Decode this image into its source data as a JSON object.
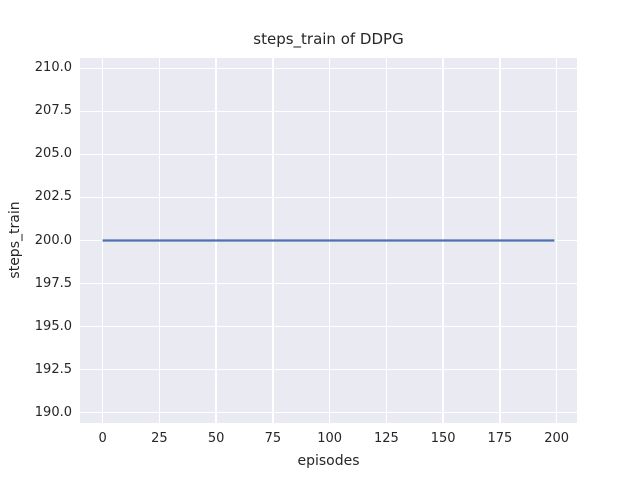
{
  "figure": {
    "title": "steps_train of DDPG",
    "xlabel": "episodes",
    "ylabel": "steps_train"
  },
  "chart_data": {
    "type": "line",
    "title": "steps_train of DDPG",
    "xlabel": "episodes",
    "ylabel": "steps_train",
    "x_ticks": [
      0,
      25,
      50,
      75,
      100,
      125,
      150,
      175,
      200
    ],
    "x_tick_labels": [
      "0",
      "25",
      "50",
      "75",
      "100",
      "125",
      "150",
      "175",
      "200"
    ],
    "y_ticks": [
      190.0,
      192.5,
      195.0,
      197.5,
      200.0,
      202.5,
      205.0,
      207.5,
      210.0
    ],
    "y_tick_labels": [
      "190.0",
      "192.5",
      "195.0",
      "197.5",
      "200.0",
      "202.5",
      "205.0",
      "207.5",
      "210.0"
    ],
    "xlim": [
      -9.95,
      208.95
    ],
    "ylim": [
      189.4,
      210.6
    ],
    "grid": true,
    "legend_visible": false,
    "background_color": "#eaeaf2",
    "grid_color": "#ffffff",
    "text_color": "#262626",
    "series": [
      {
        "name": "steps_train",
        "color": "#4c72b0",
        "line_width": 2.2,
        "x": [
          0,
          199
        ],
        "y": [
          200,
          200
        ],
        "note": "constant value 200 for every episode from 0 to 199"
      }
    ]
  }
}
